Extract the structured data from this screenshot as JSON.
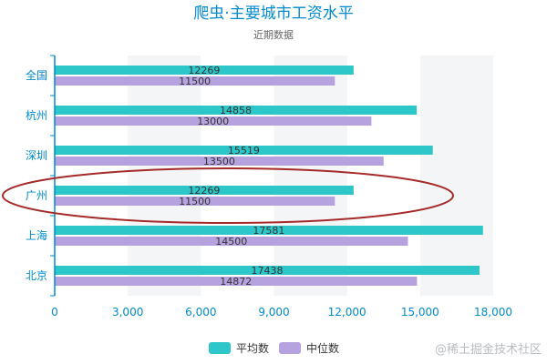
{
  "watermark": "@稀土掘金技术社区",
  "chart_data": {
    "type": "bar",
    "orientation": "horizontal",
    "title": "爬虫·主要城市工资水平",
    "subtitle": "近期数据",
    "categories": [
      "北京",
      "上海",
      "广州",
      "深圳",
      "杭州",
      "全国"
    ],
    "series": [
      {
        "name": "平均数",
        "color": "#2ec7c9",
        "values": [
          17438,
          17581,
          12269,
          15519,
          14858,
          12269
        ]
      },
      {
        "name": "中位数",
        "color": "#b6a2de",
        "values": [
          14872,
          14500,
          11500,
          13500,
          13000,
          11500
        ]
      }
    ],
    "xlim": [
      0,
      18000
    ],
    "xticks": [
      0,
      3000,
      6000,
      9000,
      12000,
      15000,
      18000
    ],
    "xtick_labels": [
      "0",
      "3,000",
      "6,000",
      "9,000",
      "12,000",
      "15,000",
      "18,000"
    ],
    "highlighted_category": "广州",
    "legend_position": "bottom",
    "colors": {
      "title": "#008acd",
      "axis": "#008acd",
      "highlight_ring": "#a52a2a",
      "band": "#f4f5f7"
    }
  }
}
